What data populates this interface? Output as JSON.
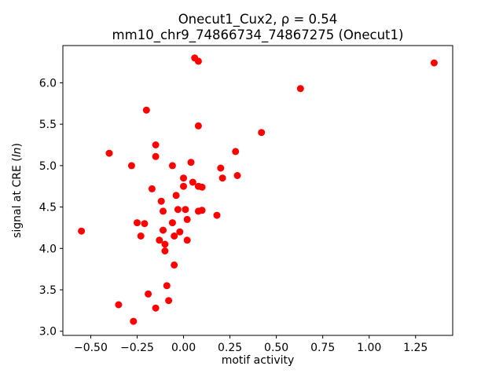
{
  "chart_data": {
    "type": "scatter",
    "title": "Onecut1_Cux2, ρ = 0.54",
    "subtitle": "mm10_chr9_74866734_74867275 (Onecut1)",
    "xlabel": "motif activity",
    "ylabel_parts": {
      "prefix": "signal at CRE (",
      "italic": "ln",
      "suffix": ")"
    },
    "marker_color": "#ff0000",
    "marker_radius": 4.5,
    "grid": false,
    "legend": "none",
    "xlim": [
      -0.65,
      1.45
    ],
    "ylim": [
      2.95,
      6.45
    ],
    "xticks": {
      "values": [
        -0.5,
        -0.25,
        0.0,
        0.25,
        0.5,
        0.75,
        1.0,
        1.25
      ],
      "labels": [
        "−0.50",
        "−0.25",
        "0.00",
        "0.25",
        "0.50",
        "0.75",
        "1.00",
        "1.25"
      ]
    },
    "yticks": {
      "values": [
        3.0,
        3.5,
        4.0,
        4.5,
        5.0,
        5.5,
        6.0
      ],
      "labels": [
        "3.0",
        "3.5",
        "4.0",
        "4.5",
        "5.0",
        "5.5",
        "6.0"
      ]
    },
    "points": [
      [
        -0.55,
        4.21
      ],
      [
        -0.4,
        5.15
      ],
      [
        -0.35,
        3.32
      ],
      [
        -0.28,
        5.0
      ],
      [
        -0.27,
        3.12
      ],
      [
        -0.25,
        4.31
      ],
      [
        -0.23,
        4.15
      ],
      [
        -0.21,
        4.3
      ],
      [
        -0.2,
        5.67
      ],
      [
        -0.19,
        3.45
      ],
      [
        -0.17,
        4.72
      ],
      [
        -0.15,
        5.25
      ],
      [
        -0.15,
        5.11
      ],
      [
        -0.15,
        3.28
      ],
      [
        -0.13,
        4.1
      ],
      [
        -0.12,
        4.57
      ],
      [
        -0.11,
        4.45
      ],
      [
        -0.11,
        4.22
      ],
      [
        -0.1,
        4.05
      ],
      [
        -0.1,
        3.97
      ],
      [
        -0.09,
        3.55
      ],
      [
        -0.08,
        3.37
      ],
      [
        -0.06,
        5.0
      ],
      [
        -0.06,
        4.31
      ],
      [
        -0.05,
        4.15
      ],
      [
        -0.05,
        3.8
      ],
      [
        -0.04,
        4.64
      ],
      [
        -0.03,
        4.47
      ],
      [
        -0.02,
        4.2
      ],
      [
        0.0,
        4.85
      ],
      [
        0.0,
        4.75
      ],
      [
        0.01,
        4.47
      ],
      [
        0.02,
        4.35
      ],
      [
        0.02,
        4.1
      ],
      [
        0.04,
        5.04
      ],
      [
        0.05,
        4.8
      ],
      [
        0.06,
        6.3
      ],
      [
        0.08,
        6.26
      ],
      [
        0.08,
        5.48
      ],
      [
        0.08,
        4.75
      ],
      [
        0.08,
        4.45
      ],
      [
        0.1,
        4.74
      ],
      [
        0.1,
        4.46
      ],
      [
        0.18,
        4.4
      ],
      [
        0.2,
        4.97
      ],
      [
        0.21,
        4.85
      ],
      [
        0.28,
        5.17
      ],
      [
        0.29,
        4.88
      ],
      [
        0.42,
        5.4
      ],
      [
        0.63,
        5.93
      ],
      [
        1.35,
        6.24
      ]
    ]
  }
}
